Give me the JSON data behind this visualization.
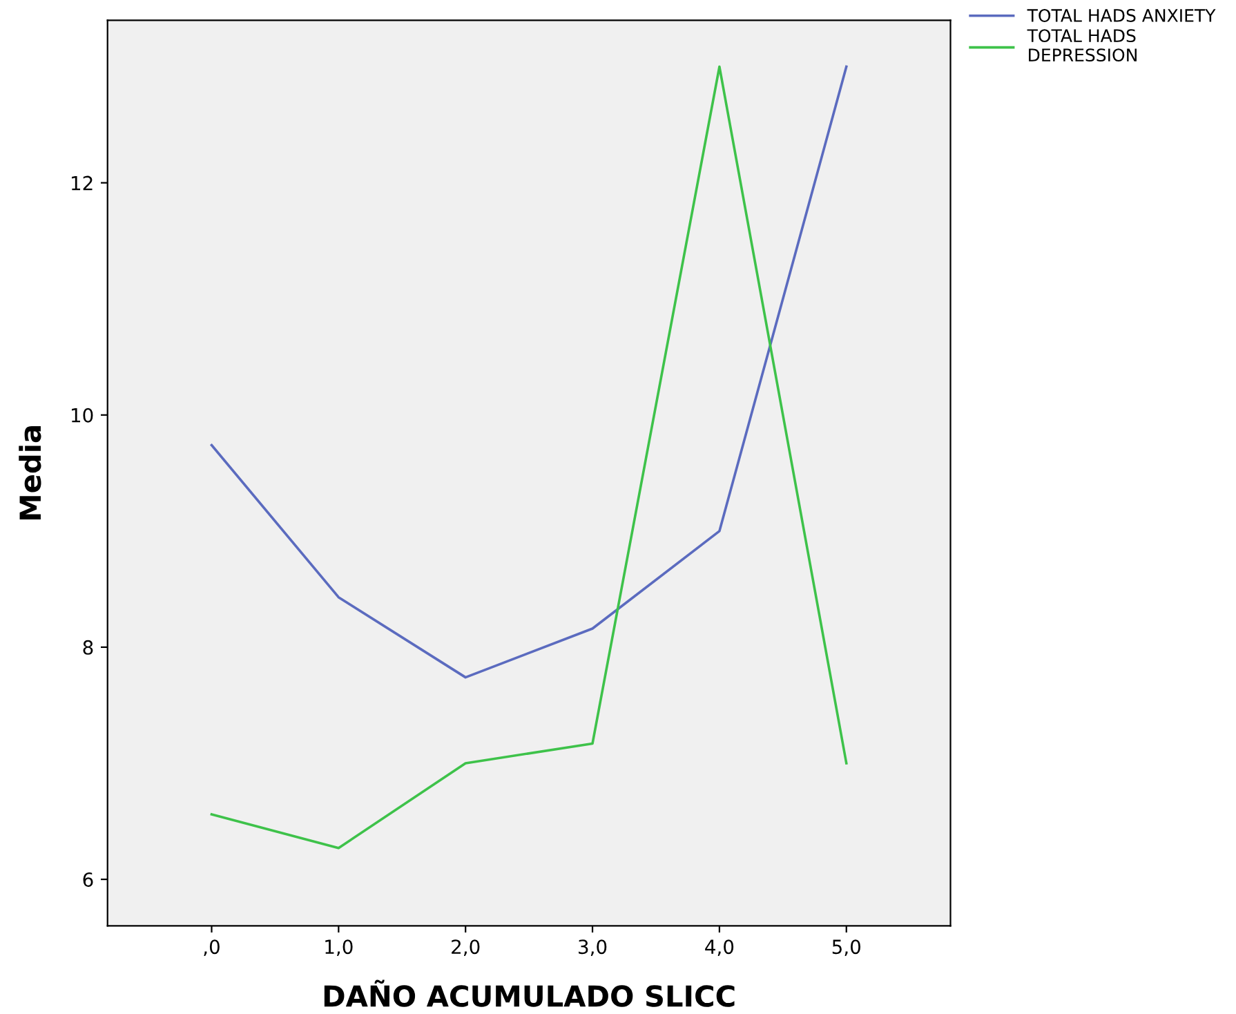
{
  "chart_data": {
    "type": "line",
    "xlabel": "DAÑO ACUMULADO SLICC",
    "ylabel": "Media",
    "categories": [
      ",0",
      "1,0",
      "2,0",
      "3,0",
      "4,0",
      "5,0"
    ],
    "series": [
      {
        "name": "TOTAL HADS ANXIETY",
        "color": "#5b6bbf",
        "values": [
          9.74,
          8.43,
          7.74,
          8.16,
          9.0,
          13.0
        ]
      },
      {
        "name": "TOTAL HADS\nDEPRESSION",
        "color": "#3ec24a",
        "values": [
          6.56,
          6.27,
          7.0,
          7.17,
          13.0,
          7.0
        ]
      }
    ],
    "ylim": [
      5.6,
      13.4
    ],
    "yticks": [
      6,
      8,
      10,
      12
    ],
    "grid": false,
    "legend": "top right",
    "marker": "none",
    "line_style": "solid"
  }
}
